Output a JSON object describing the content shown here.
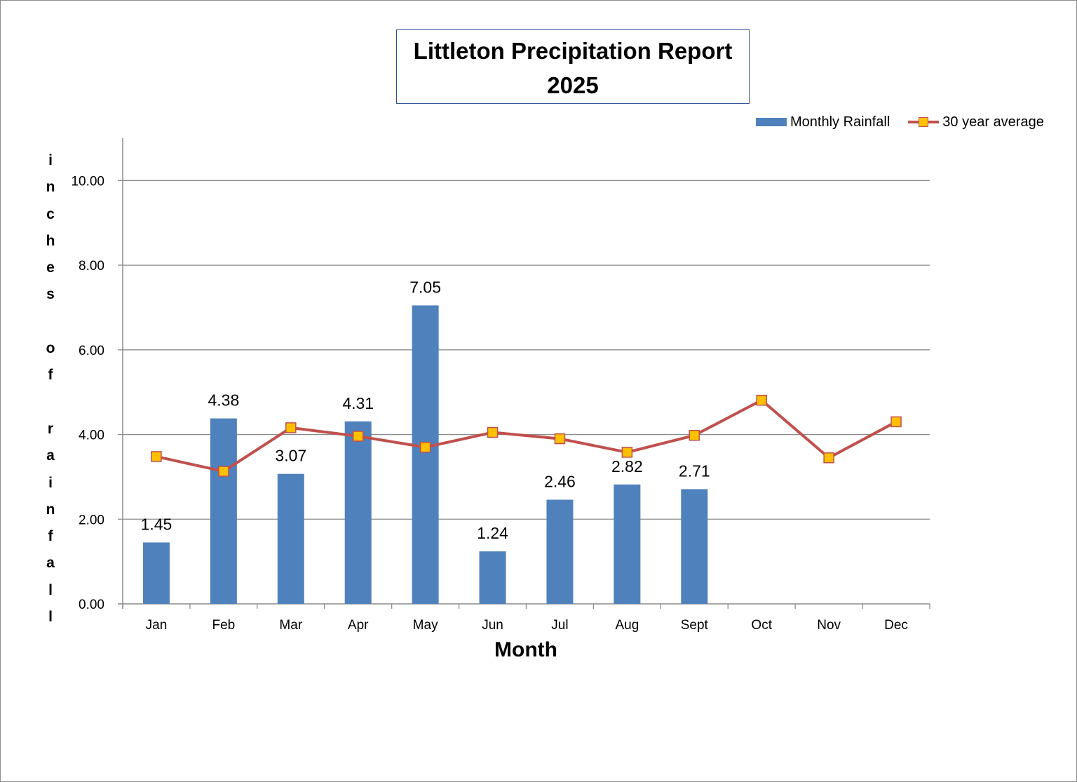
{
  "chart_data": {
    "type": "bar",
    "title_line1": "Littleton Precipitation Report",
    "title_line2": "2025",
    "xlabel": "Month",
    "ylabel": "inches of rainfall",
    "ylabel_letters": [
      "i",
      "n",
      "c",
      "h",
      "e",
      "s",
      "",
      "o",
      "f",
      "",
      "r",
      "a",
      "i",
      "n",
      "f",
      "a",
      "l",
      "l"
    ],
    "ylim": [
      0,
      11
    ],
    "yticks": [
      0,
      2,
      4,
      6,
      8,
      10
    ],
    "ytick_labels": [
      "0.00",
      "2.00",
      "4.00",
      "6.00",
      "8.00",
      "10.00"
    ],
    "grid": true,
    "legend_position": "top-right",
    "categories": [
      "Jan",
      "Feb",
      "Mar",
      "Apr",
      "May",
      "Jun",
      "Jul",
      "Aug",
      "Sept",
      "Oct",
      "Nov",
      "Dec"
    ],
    "series": [
      {
        "name": "Monthly Rainfall",
        "type": "bar",
        "color": "#4f81bd",
        "values": [
          1.45,
          4.38,
          3.07,
          4.31,
          7.05,
          1.24,
          2.46,
          2.82,
          2.71,
          null,
          null,
          null
        ],
        "data_labels": [
          "1.45",
          "4.38",
          "3.07",
          "4.31",
          "7.05",
          "1.24",
          "2.46",
          "2.82",
          "2.71",
          null,
          null,
          null
        ]
      },
      {
        "name": "30 year average",
        "type": "line",
        "color": "#c0504d",
        "marker_color": "#ffc000",
        "values": [
          3.48,
          3.13,
          4.16,
          3.96,
          3.7,
          4.05,
          3.9,
          3.58,
          3.98,
          4.81,
          3.45,
          4.3
        ]
      }
    ]
  }
}
